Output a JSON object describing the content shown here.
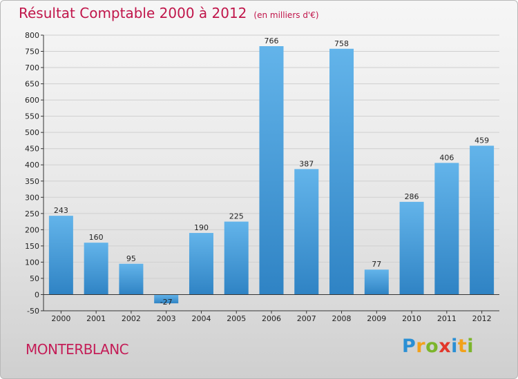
{
  "header": {
    "title": "Résultat Comptable 2000 à 2012",
    "unit": "(en milliers d'€)"
  },
  "footer": {
    "town": "MONTERBLANC",
    "logo": "Proxiti"
  },
  "colors": {
    "bar_top": "#63b4ea",
    "bar_bottom": "#2f83c4",
    "title": "#c0154a",
    "axis": "#333333",
    "grid": "#cfcfcf"
  },
  "chart_data": {
    "type": "bar",
    "title": "Résultat Comptable 2000 à 2012",
    "xlabel": "",
    "ylabel": "",
    "categories": [
      "2000",
      "2001",
      "2002",
      "2003",
      "2004",
      "2005",
      "2006",
      "2007",
      "2008",
      "2009",
      "2010",
      "2011",
      "2012"
    ],
    "values": [
      243,
      160,
      95,
      -27,
      190,
      225,
      766,
      387,
      758,
      77,
      286,
      406,
      459
    ],
    "value_labels": [
      "243",
      "160",
      "95",
      "-27",
      "190",
      "225",
      "766",
      "387",
      "758",
      "77",
      "286",
      "406",
      "459"
    ],
    "ylim": [
      -50,
      800
    ],
    "yticks": [
      -50,
      0,
      50,
      100,
      150,
      200,
      250,
      300,
      350,
      400,
      450,
      500,
      550,
      600,
      650,
      700,
      750,
      800
    ],
    "grid": true,
    "legend": "none"
  }
}
